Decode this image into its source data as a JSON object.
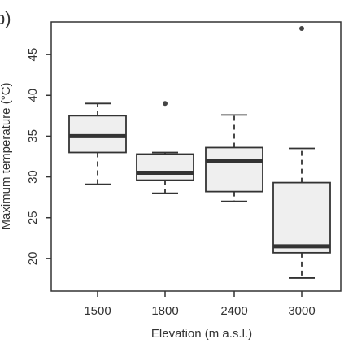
{
  "panel_label": "b)",
  "chart_data": {
    "type": "boxplot",
    "xlabel": "Elevation (m a.s.l.)",
    "ylabel": "Maximum temperature (°C)",
    "ylim": [
      16,
      49
    ],
    "yticks": [
      20,
      25,
      30,
      35,
      40,
      45
    ],
    "categories": [
      "1500",
      "1800",
      "2400",
      "3000"
    ],
    "boxes": [
      {
        "category": "1500",
        "whisker_low": 29.1,
        "q1": 33.0,
        "median": 35.0,
        "q3": 37.5,
        "whisker_high": 39.0,
        "outliers": []
      },
      {
        "category": "1800",
        "whisker_low": 28.0,
        "q1": 29.6,
        "median": 30.5,
        "q3": 32.8,
        "whisker_high": 33.0,
        "outliers": [
          39.0
        ]
      },
      {
        "category": "2400",
        "whisker_low": 27.0,
        "q1": 28.2,
        "median": 32.0,
        "q3": 33.6,
        "whisker_high": 37.6,
        "outliers": []
      },
      {
        "category": "3000",
        "whisker_low": 17.6,
        "q1": 20.7,
        "median": 21.5,
        "q3": 29.3,
        "whisker_high": 33.5,
        "outliers": [
          48.2
        ]
      }
    ],
    "box_fill": "#efefef",
    "stroke_color": "#333333"
  }
}
